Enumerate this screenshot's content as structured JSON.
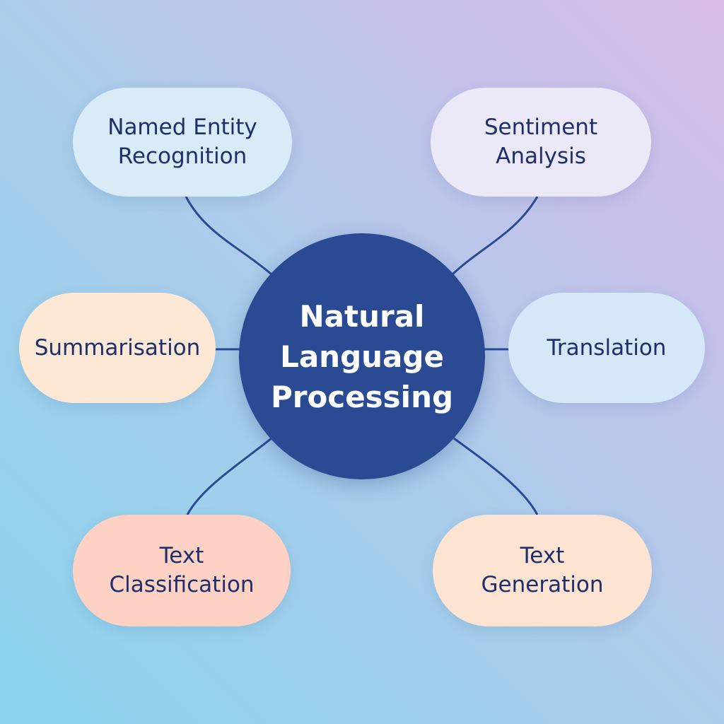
{
  "colors": {
    "center_fill": "#2a4b93",
    "connector": "#2a4b93",
    "node_blue_light": "#d8ecf8",
    "node_lavender": "#ebe8f8",
    "node_peach": "#fde8d6",
    "node_salmon": "#fdd2c4",
    "text_dark": "#1e2f6b"
  },
  "center": {
    "lines": [
      "Natural",
      "Language",
      "Processing"
    ]
  },
  "nodes": {
    "named_entity_recognition": {
      "lines": [
        "Named Entity",
        "Recognition"
      ],
      "color": "#d8ecf8"
    },
    "sentiment_analysis": {
      "lines": [
        "Sentiment",
        "Analysis"
      ],
      "color": "#ebe8f8"
    },
    "summarisation": {
      "lines": [
        "Summarisation"
      ],
      "color": "#fde8d6"
    },
    "translation": {
      "lines": [
        "Translation"
      ],
      "color": "#d5e8f7"
    },
    "text_classification": {
      "lines": [
        "Text",
        "Classification"
      ],
      "color": "#fdd2c4"
    },
    "text_generation": {
      "lines": [
        "Text",
        "Generation"
      ],
      "color": "#fde3d2"
    }
  }
}
